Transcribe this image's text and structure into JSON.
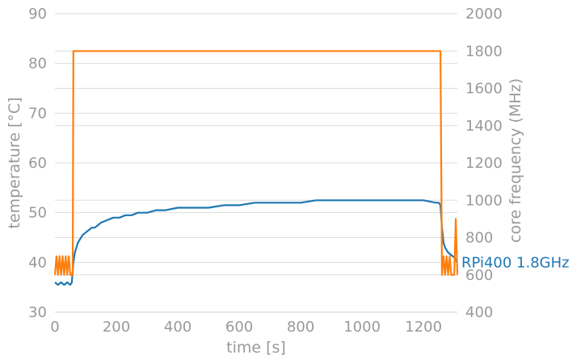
{
  "chart_data": {
    "type": "line",
    "x_label": "time [s]",
    "y_label_left": "temperature [°C]",
    "y_label_right": "core frequency (MHz)",
    "x_range": [
      0,
      1310
    ],
    "y_left_range": [
      30,
      90
    ],
    "y_right_range": [
      400,
      2000
    ],
    "x_ticks": [
      "0",
      "200",
      "400",
      "600",
      "800",
      "1000",
      "1200"
    ],
    "x_tick_values": [
      0,
      200,
      400,
      600,
      800,
      1000,
      1200
    ],
    "y_left_ticks": [
      "30",
      "40",
      "50",
      "60",
      "70",
      "80",
      "90"
    ],
    "y_left_tick_values": [
      30,
      40,
      50,
      60,
      70,
      80,
      90
    ],
    "y_right_ticks": [
      "400",
      "600",
      "800",
      "1000",
      "1200",
      "1400",
      "1600",
      "1800",
      "2000"
    ],
    "y_right_tick_values": [
      400,
      600,
      800,
      1000,
      1200,
      1400,
      1600,
      1800,
      2000
    ],
    "grid": true,
    "series": [
      {
        "name": "RPi400 1.8GHz",
        "axis": "left",
        "color": "#1f77b4",
        "x": [
          0,
          10,
          20,
          30,
          40,
          50,
          55,
          60,
          65,
          70,
          75,
          80,
          85,
          90,
          100,
          110,
          120,
          130,
          140,
          150,
          170,
          190,
          210,
          230,
          250,
          270,
          300,
          330,
          360,
          400,
          450,
          500,
          550,
          600,
          650,
          700,
          750,
          800,
          850,
          900,
          950,
          1000,
          1050,
          1100,
          1150,
          1200,
          1240,
          1250,
          1255,
          1260,
          1265,
          1270,
          1275,
          1280,
          1290,
          1300,
          1310
        ],
        "values": [
          36,
          35.5,
          36,
          35.5,
          36,
          35.5,
          36,
          40,
          42,
          43,
          44,
          44.5,
          45,
          45.5,
          46,
          46.5,
          47,
          47,
          47.5,
          48,
          48.5,
          49,
          49,
          49.5,
          49.5,
          50,
          50,
          50.5,
          50.5,
          51,
          51,
          51,
          51.5,
          51.5,
          52,
          52,
          52,
          52,
          52.5,
          52.5,
          52.5,
          52.5,
          52.5,
          52.5,
          52.5,
          52.5,
          52,
          52,
          51.5,
          47,
          44,
          43,
          42.5,
          42,
          41.5,
          41,
          40
        ]
      },
      {
        "name": "",
        "axis": "right",
        "color": "#ff7f0e",
        "x": [
          0,
          5,
          10,
          15,
          20,
          25,
          30,
          35,
          40,
          45,
          50,
          55,
          58,
          60,
          1255,
          1260,
          1265,
          1270,
          1275,
          1280,
          1285,
          1290,
          1295,
          1300,
          1305,
          1310
        ],
        "values": [
          600,
          700,
          600,
          700,
          600,
          700,
          600,
          700,
          600,
          700,
          600,
          600,
          600,
          1800,
          1800,
          600,
          700,
          600,
          700,
          600,
          700,
          600,
          600,
          600,
          900,
          600
        ]
      }
    ]
  }
}
